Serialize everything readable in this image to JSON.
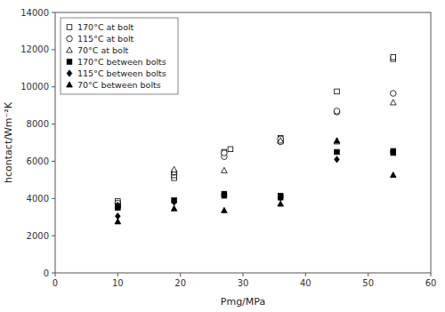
{
  "chart_data": {
    "type": "scatter",
    "title": "",
    "xlabel": "Pmg/MPa",
    "ylabel": "hcontact/Wm⁻²K",
    "xlim": [
      0,
      60
    ],
    "ylim": [
      0,
      14000
    ],
    "xticks": [
      0,
      10,
      20,
      30,
      40,
      50,
      60
    ],
    "yticks": [
      0,
      2000,
      4000,
      6000,
      8000,
      10000,
      12000,
      14000
    ],
    "grid": false,
    "legend": "upper left",
    "series": [
      {
        "name": "170°C at bolt",
        "marker": "square",
        "color": "white",
        "x": [
          10,
          10,
          19,
          19,
          27,
          28,
          36,
          36,
          45,
          54,
          54
        ],
        "values": [
          3750,
          3850,
          5100,
          5250,
          6500,
          6650,
          7100,
          7250,
          9750,
          11500,
          11600
        ]
      },
      {
        "name": "115°C at bolt",
        "marker": "circle",
        "color": "white",
        "x": [
          10,
          19,
          27,
          27,
          36,
          36,
          45,
          45,
          54
        ],
        "values": [
          3750,
          5400,
          6250,
          6450,
          7050,
          7200,
          8650,
          8700,
          9650
        ]
      },
      {
        "name": "70°C at bolt",
        "marker": "triangle",
        "color": "white",
        "x": [
          10,
          19,
          19,
          27,
          36,
          45,
          54
        ],
        "values": [
          3650,
          5400,
          5550,
          5500,
          7100,
          7050,
          9150
        ]
      },
      {
        "name": "170°C between bolts",
        "marker": "square",
        "color": "black",
        "x": [
          10,
          10,
          19,
          27,
          27,
          36,
          36,
          45,
          54,
          54
        ],
        "values": [
          3500,
          3600,
          3900,
          4150,
          4250,
          4050,
          4150,
          6500,
          6450,
          6550
        ]
      },
      {
        "name": "115°C between bolts",
        "marker": "diamond",
        "color": "black",
        "x": [
          10,
          19,
          27,
          36,
          45,
          54
        ],
        "values": [
          3050,
          3800,
          4200,
          4050,
          6100,
          6500
        ]
      },
      {
        "name": "70°C between bolts",
        "marker": "triangle",
        "color": "black",
        "x": [
          10,
          19,
          27,
          36,
          45,
          54
        ],
        "values": [
          2750,
          3450,
          3350,
          3700,
          7100,
          5250
        ]
      }
    ]
  }
}
